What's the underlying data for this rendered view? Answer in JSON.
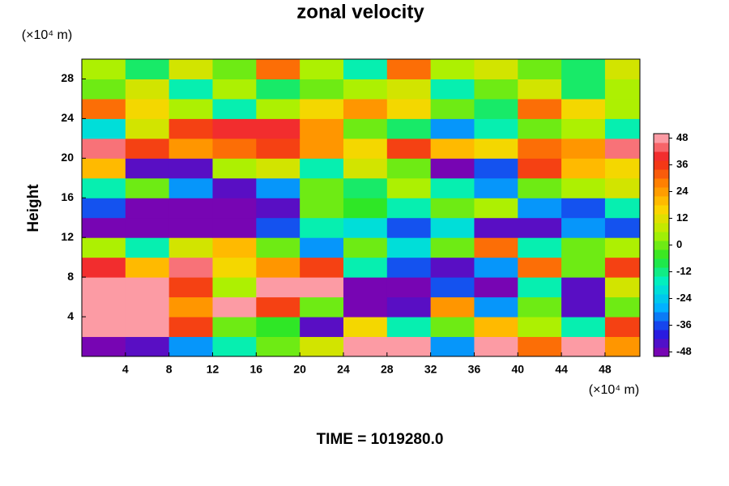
{
  "chart_data": {
    "type": "heatmap",
    "title": "zonal velocity",
    "ylabel": "Height",
    "x_unit": "(×10⁴ m)",
    "y_unit": "(×10⁴ m)",
    "footer": "TIME = 1019280.0",
    "xlim": [
      0,
      51.2
    ],
    "ylim": [
      0,
      30
    ],
    "xticks": [
      4,
      8,
      12,
      16,
      20,
      24,
      28,
      32,
      36,
      40,
      44,
      48
    ],
    "yticks": [
      4,
      8,
      12,
      16,
      20,
      24,
      28
    ],
    "clim": [
      -50,
      50
    ],
    "cticks": [
      -48,
      -36,
      -24,
      -12,
      0,
      12,
      24,
      36,
      48
    ],
    "colormap": [
      "#8a00a8",
      "#1e1ee6",
      "#00b4ff",
      "#00f0c8",
      "#28e628",
      "#b4f000",
      "#ffd200",
      "#ff8200",
      "#f01e1e",
      "#ffb6c1"
    ],
    "x": [
      2,
      6,
      10,
      14,
      18,
      22,
      26,
      30,
      34,
      38,
      42,
      46,
      50
    ],
    "y": [
      1,
      3,
      5,
      7,
      9,
      11,
      13,
      15,
      17,
      19,
      21,
      23,
      25,
      27,
      29
    ],
    "z": [
      [
        -48,
        -45,
        -30,
        -15,
        0,
        10,
        48,
        48,
        -30,
        48,
        30,
        48,
        25
      ],
      [
        48,
        48,
        35,
        0,
        -5,
        -45,
        15,
        -15,
        0,
        20,
        5,
        -15,
        35
      ],
      [
        48,
        48,
        25,
        48,
        35,
        0,
        -48,
        -45,
        25,
        -30,
        0,
        -45,
        0
      ],
      [
        48,
        48,
        35,
        5,
        48,
        48,
        -48,
        -48,
        -35,
        -48,
        -15,
        -45,
        10
      ],
      [
        40,
        20,
        45,
        15,
        25,
        35,
        -15,
        -35,
        -45,
        -30,
        30,
        0,
        35
      ],
      [
        5,
        -15,
        10,
        20,
        0,
        -30,
        0,
        -20,
        0,
        30,
        -15,
        0,
        5
      ],
      [
        -48,
        -48,
        -48,
        -48,
        -35,
        -15,
        -20,
        -35,
        -20,
        -45,
        -45,
        -30,
        -35
      ],
      [
        -35,
        -48,
        -48,
        -48,
        -45,
        0,
        -5,
        -15,
        0,
        5,
        -30,
        -35,
        -15
      ],
      [
        -15,
        0,
        -30,
        -45,
        -30,
        0,
        -10,
        5,
        -15,
        -30,
        0,
        5,
        10
      ],
      [
        20,
        -45,
        -45,
        5,
        10,
        -15,
        10,
        0,
        -48,
        -35,
        35,
        20,
        15
      ],
      [
        45,
        35,
        25,
        30,
        35,
        25,
        15,
        35,
        20,
        15,
        30,
        25,
        45
      ],
      [
        -20,
        10,
        35,
        40,
        40,
        25,
        0,
        -10,
        -30,
        -15,
        0,
        5,
        -15
      ],
      [
        30,
        15,
        5,
        -15,
        5,
        15,
        25,
        15,
        0,
        -10,
        30,
        15,
        5
      ],
      [
        0,
        10,
        -15,
        5,
        -10,
        0,
        5,
        10,
        -15,
        0,
        10,
        -10,
        5
      ],
      [
        5,
        -10,
        10,
        0,
        30,
        5,
        -15,
        30,
        5,
        10,
        0,
        -10,
        10
      ]
    ]
  }
}
